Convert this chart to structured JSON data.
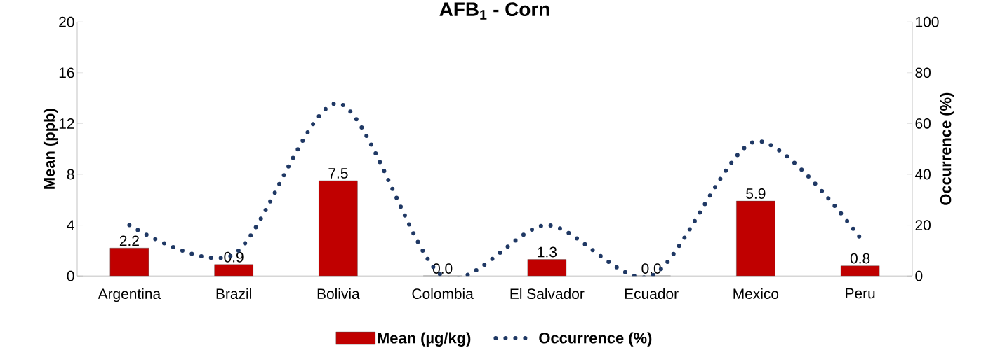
{
  "chart_data": {
    "type": "bar",
    "title": "**AFB$_{1}$ - Corn**",
    "categories": [
      "Argentina",
      "Brazil",
      "Bolivia",
      "Colombia",
      "El Salvador",
      "Ecuador",
      "Mexico",
      "Peru"
    ],
    "ylabel": "Mean (ppb)",
    "y2label": "Occurrence (%)",
    "ylim": [
      0,
      20
    ],
    "yticks": [
      0,
      4,
      8,
      12,
      16,
      20
    ],
    "y2lim": [
      0,
      100
    ],
    "y2ticks": [
      0,
      20,
      40,
      60,
      80,
      100
    ],
    "legend": "bottom",
    "series": [
      {
        "name": "Mean (µg/kg)",
        "color": "#c00000",
        "values": [
          2.2,
          0.9,
          7.5,
          0.0,
          1.3,
          0.0,
          5.9,
          0.8
        ],
        "value_labels": [
          "2.2",
          "0.9",
          "7.5",
          "0.0",
          "1.3",
          "0.0",
          "5.9",
          "0.8"
        ]
      },
      {
        "name": "Occurrence (%)",
        "type": "line",
        "axis": "y2",
        "line_style": "dotted",
        "color": "#1f3864",
        "values": [
          20,
          8.5,
          68,
          0,
          20,
          0,
          53,
          15
        ]
      }
    ]
  }
}
